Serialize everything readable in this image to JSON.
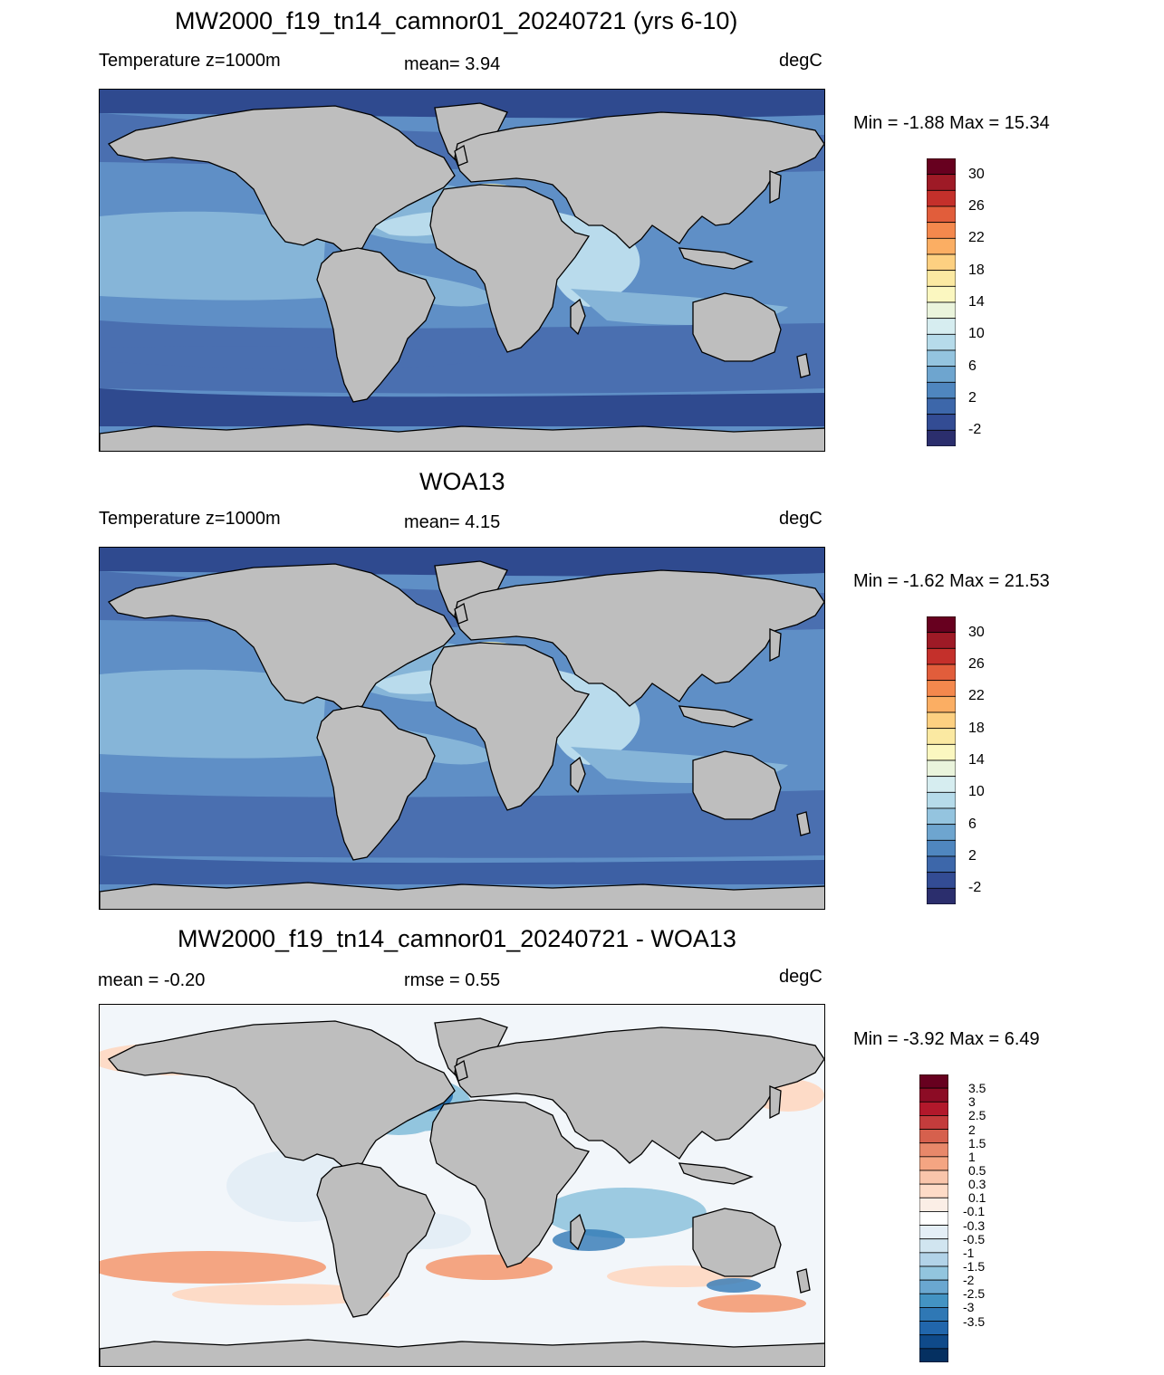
{
  "panels": [
    {
      "title": "MW2000_f19_tn14_camnor01_20240721 (yrs 6-10)",
      "left_label": "Temperature z=1000m",
      "center_label": "mean=   3.94",
      "units": "degC",
      "minmax": "Min =  -1.88 Max =  15.34",
      "colors": {
        "polar": "#2f4a8f",
        "deep": "#4a6fb0",
        "mid": "#5f8fc6",
        "warm": "#86b5d8",
        "warmer": "#b9dbec",
        "med": "#f6f7c7"
      }
    },
    {
      "title": "WOA13",
      "left_label": "Temperature z=1000m",
      "center_label": "mean=   4.15",
      "units": "degC",
      "minmax": "Min =  -1.62 Max =  21.53",
      "colors": {
        "polar": "#2f4a8f",
        "deep": "#4a6fb0",
        "mid": "#5f8fc6",
        "warm": "#86b5d8",
        "warmer": "#b9dbec",
        "med": "#f6f7c7"
      }
    },
    {
      "title": "MW2000_f19_tn14_camnor01_20240721 - WOA13",
      "left_label": "mean =  -0.20",
      "center_label": "rmse =   0.55",
      "units": "degC",
      "minmax": "Min =  -3.92 Max =   6.49"
    }
  ],
  "temp_colorbar": {
    "labels": [
      "30",
      "26",
      "22",
      "18",
      "14",
      "10",
      "6",
      "2",
      "-2"
    ],
    "colors": [
      "#67001f",
      "#9e1a26",
      "#c4302b",
      "#e15d3b",
      "#f4884d",
      "#fbae63",
      "#fdd081",
      "#fbe9a2",
      "#fbf7c0",
      "#eaf4dc",
      "#d6edf0",
      "#b6dbea",
      "#94c4df",
      "#6ea5cf",
      "#4f86bf",
      "#3d67aa",
      "#334c94",
      "#2b2e6d"
    ]
  },
  "diff_colorbar": {
    "labels": [
      "3.5",
      "3",
      "2.5",
      "2",
      "1.5",
      "1",
      "0.5",
      "0.3",
      "0.1",
      "-0.1",
      "-0.3",
      "-0.5",
      "-1",
      "-1.5",
      "-2",
      "-2.5",
      "-3",
      "-3.5"
    ],
    "colors": [
      "#67001f",
      "#8c0c25",
      "#b2182b",
      "#c43c3c",
      "#d6604d",
      "#e8886a",
      "#f4a582",
      "#f9c5ab",
      "#fddbc7",
      "#fbeee6",
      "#ffffff",
      "#e4eef6",
      "#d1e5f0",
      "#b2d3e8",
      "#92c5de",
      "#6aa7d0",
      "#4393c3",
      "#2f78b5",
      "#2166ac",
      "#0f4a8a",
      "#053061"
    ]
  },
  "map_colors": {
    "land": "#bebebe",
    "coast": "#000000",
    "diff_warm": "#f4a582",
    "diff_warm_light": "#fddbc7",
    "diff_cool": "#92c5de",
    "diff_cool_dark": "#2f78b5",
    "diff_neutral": "#f2f6fa"
  }
}
